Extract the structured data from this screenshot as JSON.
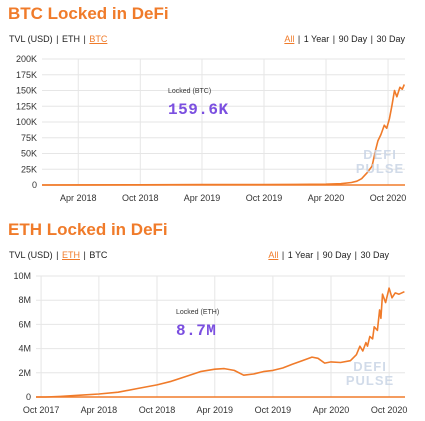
{
  "btc": {
    "title": "BTC Locked in DeFi",
    "metric_tabs": [
      {
        "label": "TVL (USD)",
        "active": false
      },
      {
        "label": "ETH",
        "active": false
      },
      {
        "label": "BTC",
        "active": true
      }
    ],
    "range_tabs": [
      {
        "label": "All",
        "active": true
      },
      {
        "label": "1 Year",
        "active": false
      },
      {
        "label": "90 Day",
        "active": false
      },
      {
        "label": "30 Day",
        "active": false
      }
    ],
    "callout_label": "Locked (BTC)",
    "callout_value": "159.6K",
    "watermark": [
      "DEFI",
      "PULSE"
    ]
  },
  "eth": {
    "title": "ETH Locked in DeFi",
    "metric_tabs": [
      {
        "label": "TVL (USD)",
        "active": false
      },
      {
        "label": "ETH",
        "active": true
      },
      {
        "label": "BTC",
        "active": false
      }
    ],
    "range_tabs": [
      {
        "label": "All",
        "active": true
      },
      {
        "label": "1 Year",
        "active": false
      },
      {
        "label": "90 Day",
        "active": false
      },
      {
        "label": "30 Day",
        "active": false
      }
    ],
    "callout_label": "Locked (ETH)",
    "callout_value": "8.7M",
    "watermark": [
      "DEFI",
      "PULSE"
    ]
  },
  "colors": {
    "line": "#f07b2a",
    "accent": "#f07b2a",
    "callout": "#7b4fe0",
    "watermark": "#c9d5e6"
  },
  "chart_data": [
    {
      "type": "line",
      "title": "BTC Locked in DeFi",
      "ylabel": "",
      "xlabel": "",
      "ylim": [
        0,
        200000
      ],
      "xlim": [
        "2017-12-15",
        "2020-11-20"
      ],
      "grid": true,
      "yticks": [
        0,
        25000,
        50000,
        75000,
        100000,
        125000,
        150000,
        175000,
        200000
      ],
      "ytick_labels": [
        "0",
        "25K",
        "50K",
        "75K",
        "100K",
        "125K",
        "150K",
        "175K",
        "200K"
      ],
      "xticks": [
        "2018-04-01",
        "2018-10-01",
        "2019-04-01",
        "2019-10-01",
        "2020-04-01",
        "2020-10-01"
      ],
      "xtick_labels": [
        "Apr 2018",
        "Oct 2018",
        "Apr 2019",
        "Oct 2019",
        "Apr 2020",
        "Oct 2020"
      ],
      "series": [
        {
          "x": [
            "2017-12-15",
            "2018-04-01",
            "2018-10-01",
            "2019-04-01",
            "2019-10-01",
            "2020-01-01",
            "2020-04-01",
            "2020-05-15",
            "2020-06-15",
            "2020-07-01",
            "2020-07-15",
            "2020-08-01",
            "2020-08-15",
            "2020-08-25",
            "2020-09-01",
            "2020-09-10",
            "2020-09-20",
            "2020-09-27",
            "2020-10-05",
            "2020-10-12",
            "2020-10-20",
            "2020-10-27",
            "2020-11-05",
            "2020-11-12",
            "2020-11-18"
          ],
          "values": [
            0,
            100,
            300,
            700,
            800,
            1000,
            1200,
            2000,
            4000,
            6000,
            10000,
            20000,
            30000,
            55000,
            70000,
            80000,
            95000,
            90000,
            105000,
            125000,
            150000,
            140000,
            155000,
            152000,
            159600
          ]
        }
      ]
    },
    {
      "type": "line",
      "title": "ETH Locked in DeFi",
      "ylabel": "",
      "xlabel": "",
      "ylim": [
        0,
        10000000
      ],
      "xlim": [
        "2017-09-15",
        "2020-11-20"
      ],
      "grid": true,
      "yticks": [
        0,
        2000000,
        4000000,
        6000000,
        8000000,
        10000000
      ],
      "ytick_labels": [
        "0",
        "2M",
        "4M",
        "6M",
        "8M",
        "10M"
      ],
      "xticks": [
        "2017-10-01",
        "2018-04-01",
        "2018-10-01",
        "2019-04-01",
        "2019-10-01",
        "2020-04-01",
        "2020-10-01"
      ],
      "xtick_labels": [
        "Oct 2017",
        "Apr 2018",
        "Oct 2018",
        "Apr 2019",
        "Oct 2019",
        "Apr 2020",
        "Oct 2020"
      ],
      "series": [
        {
          "x": [
            "2017-09-15",
            "2017-10-15",
            "2017-12-01",
            "2018-02-01",
            "2018-04-01",
            "2018-06-01",
            "2018-08-01",
            "2018-10-01",
            "2018-11-15",
            "2019-01-01",
            "2019-02-15",
            "2019-04-01",
            "2019-05-01",
            "2019-06-01",
            "2019-07-01",
            "2019-08-01",
            "2019-09-01",
            "2019-10-01",
            "2019-11-01",
            "2019-12-01",
            "2020-01-01",
            "2020-02-01",
            "2020-02-20",
            "2020-03-12",
            "2020-04-01",
            "2020-05-01",
            "2020-06-01",
            "2020-06-20",
            "2020-07-01",
            "2020-07-10",
            "2020-07-20",
            "2020-07-25",
            "2020-08-01",
            "2020-08-10",
            "2020-08-15",
            "2020-08-25",
            "2020-09-01",
            "2020-09-05",
            "2020-09-10",
            "2020-09-20",
            "2020-10-01",
            "2020-10-10",
            "2020-10-20",
            "2020-11-01",
            "2020-11-18"
          ],
          "values": [
            0,
            0,
            50000,
            150000,
            250000,
            400000,
            700000,
            1000000,
            1300000,
            1700000,
            2100000,
            2300000,
            2350000,
            2200000,
            1800000,
            1900000,
            2100000,
            2200000,
            2400000,
            2700000,
            3000000,
            3300000,
            3200000,
            2800000,
            2900000,
            2850000,
            3000000,
            3500000,
            4200000,
            3800000,
            4500000,
            4200000,
            5000000,
            4800000,
            5800000,
            5500000,
            7200000,
            6500000,
            8500000,
            7800000,
            9000000,
            8200000,
            8600000,
            8500000,
            8700000
          ]
        }
      ]
    }
  ]
}
